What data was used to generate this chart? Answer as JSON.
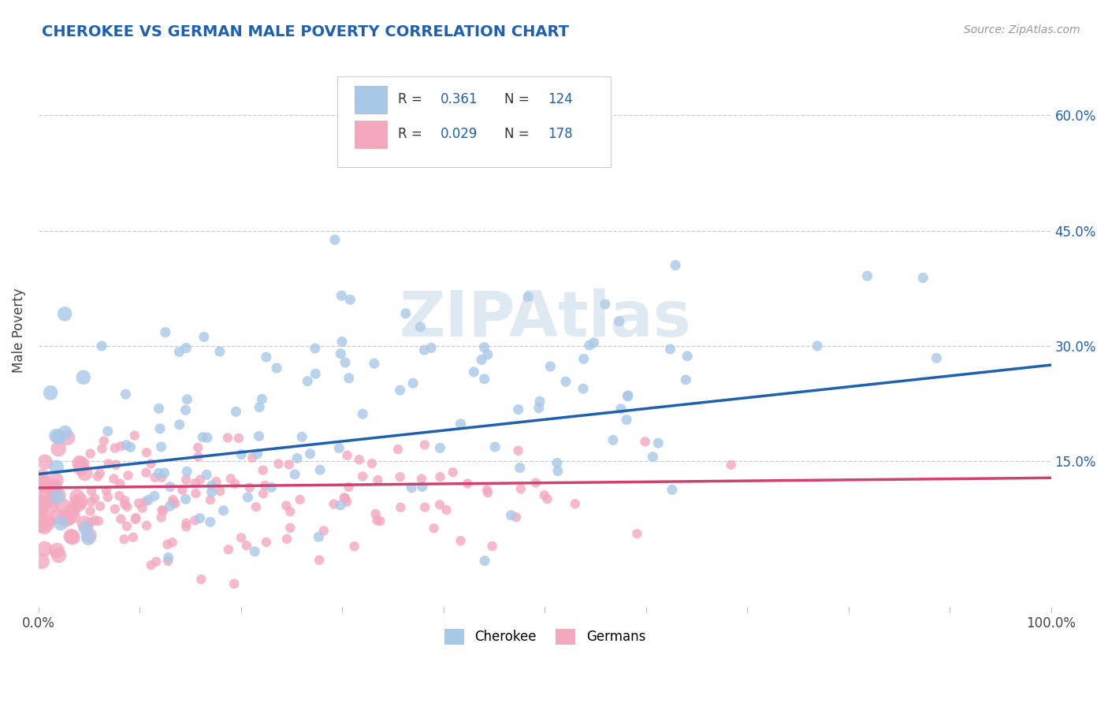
{
  "title": "CHEROKEE VS GERMAN MALE POVERTY CORRELATION CHART",
  "source": "Source: ZipAtlas.com",
  "ylabel": "Male Poverty",
  "ytick_labels": [
    "15.0%",
    "30.0%",
    "45.0%",
    "60.0%"
  ],
  "ytick_values": [
    0.15,
    0.3,
    0.45,
    0.6
  ],
  "xlim": [
    0.0,
    1.0
  ],
  "ylim": [
    -0.04,
    0.68
  ],
  "cherokee_color": "#a8c8e8",
  "german_color": "#f4a8be",
  "cherokee_line_color": "#2060b0",
  "german_line_color": "#d04070",
  "cherokee_R": 0.361,
  "cherokee_N": 124,
  "german_R": 0.029,
  "german_N": 178,
  "legend_label_cherokee": "Cherokee",
  "legend_label_german": "Germans",
  "title_color": "#2060b0",
  "source_color": "#999999",
  "background_color": "#ffffff",
  "grid_color": "#cccccc",
  "legend_value_color": "#2060b0",
  "watermark": "ZIPAtlas"
}
